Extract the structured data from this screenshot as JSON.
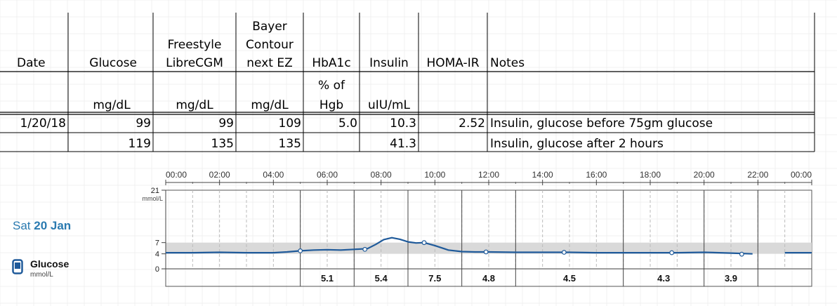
{
  "table": {
    "headers": [
      {
        "key": "date",
        "lines": [
          "Date"
        ],
        "unit": ""
      },
      {
        "key": "glucose",
        "lines": [
          "Glucose"
        ],
        "unit": "mg/dL"
      },
      {
        "key": "freestyle",
        "lines": [
          "Freestyle",
          "LibreCGM"
        ],
        "unit": "mg/dL"
      },
      {
        "key": "bayer",
        "lines": [
          "Bayer",
          "Contour",
          "next  EZ"
        ],
        "unit": "mg/dL"
      },
      {
        "key": "hba1c",
        "lines": [
          "HbA1c"
        ],
        "unit_lines": [
          "% of",
          "Hgb"
        ]
      },
      {
        "key": "insulin",
        "lines": [
          "Insulin"
        ],
        "unit": "uIU/mL"
      },
      {
        "key": "homa",
        "lines": [
          "HOMA-IR"
        ],
        "unit": ""
      },
      {
        "key": "notes",
        "lines": [
          "Notes"
        ],
        "unit": ""
      }
    ],
    "rows": [
      {
        "date": "1/20/18",
        "glucose": "99",
        "freestyle": "99",
        "bayer": "109",
        "hba1c": "5.0",
        "insulin": "10.3",
        "homa": "2.52",
        "notes": "Insulin, glucose before 75gm glucose"
      },
      {
        "date": "",
        "glucose": "119",
        "freestyle": "135",
        "bayer": "135",
        "hba1c": "",
        "insulin": "41.3",
        "homa": "",
        "notes": "Insulin, glucose after 2 hours"
      }
    ]
  },
  "cgm": {
    "day_prefix": "Sat",
    "day_date": "20 Jan",
    "legend_title": "Glucose",
    "legend_unit": "mmol/L",
    "colors": {
      "line": "#1f5a9a",
      "target_band": "#d9d9d9",
      "day_text": "#2a7ab0"
    }
  },
  "chart_data": {
    "type": "line",
    "x_ticks": [
      "00:00",
      "02:00",
      "04:00",
      "06:00",
      "08:00",
      "10:00",
      "12:00",
      "14:00",
      "16:00",
      "18:00",
      "20:00",
      "22:00",
      "00:00"
    ],
    "xlim_hours": [
      0,
      24
    ],
    "y_ticks": [
      0,
      4,
      7,
      21
    ],
    "y_unit": "mmol/L",
    "ylim": [
      0,
      21
    ],
    "target_range": [
      4,
      7
    ],
    "grid": true,
    "series": [
      {
        "x": [
          0,
          1,
          2,
          3,
          4,
          4.5,
          5,
          5.5,
          6,
          6.5,
          7,
          7.5,
          7.8,
          8.1,
          8.4,
          8.7,
          9,
          9.3,
          9.6,
          10,
          10.5,
          11,
          11.5,
          12,
          13,
          14,
          15,
          16,
          17,
          18,
          19,
          20,
          21,
          21.8,
          22.5,
          23,
          24
        ],
        "y": [
          4.3,
          4.3,
          4.4,
          4.3,
          4.3,
          4.5,
          4.8,
          5.0,
          5.1,
          5.0,
          5.2,
          5.4,
          6.5,
          7.8,
          8.3,
          7.9,
          7.2,
          6.9,
          7.0,
          6.2,
          5.0,
          4.6,
          4.5,
          4.5,
          4.4,
          4.4,
          4.4,
          4.3,
          4.3,
          4.3,
          4.3,
          4.4,
          4.2,
          4.0,
          null,
          4.3,
          4.3
        ]
      }
    ],
    "markers": [
      {
        "x": 5.0,
        "y": 4.8
      },
      {
        "x": 7.4,
        "y": 5.2
      },
      {
        "x": 9.6,
        "y": 7.0
      },
      {
        "x": 11.9,
        "y": 4.5
      },
      {
        "x": 14.8,
        "y": 4.4
      },
      {
        "x": 18.8,
        "y": 4.3
      },
      {
        "x": 21.4,
        "y": 3.9
      }
    ],
    "segment_values": [
      {
        "label": "5.1",
        "from": 5,
        "to": 7
      },
      {
        "label": "5.4",
        "from": 7,
        "to": 9
      },
      {
        "label": "7.5",
        "from": 9,
        "to": 11
      },
      {
        "label": "4.8",
        "from": 11,
        "to": 13
      },
      {
        "label": "4.5",
        "from": 13,
        "to": 17
      },
      {
        "label": "4.3",
        "from": 17,
        "to": 20
      },
      {
        "label": "3.9",
        "from": 20,
        "to": 22
      }
    ]
  }
}
